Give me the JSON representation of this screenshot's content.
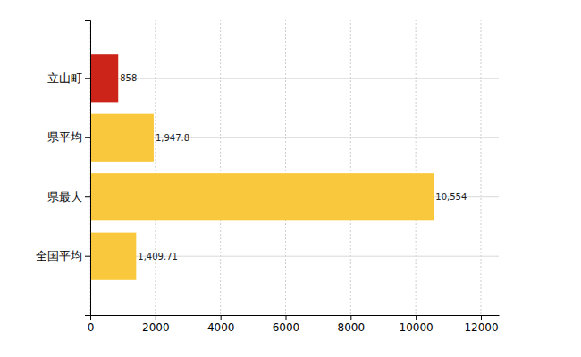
{
  "chart_data": {
    "type": "bar",
    "orientation": "horizontal",
    "categories": [
      "立山町",
      "県平均",
      "県最大",
      "全国平均"
    ],
    "values": [
      858,
      1947.8,
      10554,
      1409.71
    ],
    "value_labels": [
      "858",
      "1,947.8",
      "10,554",
      "1,409.71"
    ],
    "colors": [
      "#cc2418",
      "#f9c83c",
      "#f9c83c",
      "#f9c83c"
    ],
    "xlim": [
      0,
      12550
    ],
    "xticks": [
      0,
      2000,
      4000,
      6000,
      8000,
      10000,
      12000
    ],
    "grid": true,
    "data_labels": true
  }
}
